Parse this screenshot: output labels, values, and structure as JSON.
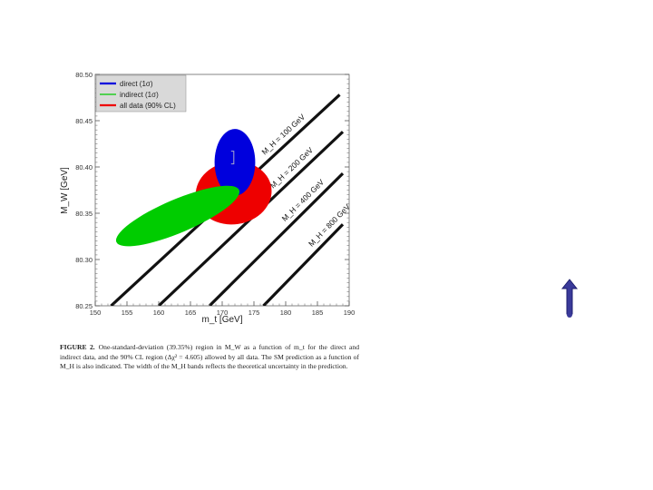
{
  "chart_data": {
    "type": "scatter",
    "xlabel": "m_t [GeV]",
    "ylabel": "M_W [GeV]",
    "xlim": [
      150,
      190
    ],
    "ylim": [
      80.25,
      80.5
    ],
    "x_ticks": [
      "150",
      "155",
      "160",
      "165",
      "170",
      "175",
      "180",
      "185",
      "190"
    ],
    "y_ticks": [
      "80.25",
      "80.30",
      "80.35",
      "80.40",
      "80.45",
      "80.50"
    ],
    "legend": [
      {
        "name": "direct (1σ)",
        "color": "#0000dd"
      },
      {
        "name": "indirect (1σ)",
        "color": "#00cc00"
      },
      {
        "name": "all data (90% CL)",
        "color": "#ee0000"
      }
    ],
    "legend_position": "top-left",
    "regions": [
      {
        "name": "all data (90% CL)",
        "color": "#ee0000",
        "cx": 171.8,
        "cy": 80.372,
        "rx": 6.0,
        "ry": 0.034,
        "rotation": -8
      },
      {
        "name": "direct (1σ)",
        "color": "#0000dd",
        "cx": 172.0,
        "cy": 80.405,
        "rx": 3.2,
        "ry": 0.036,
        "rotation": 0
      },
      {
        "name": "indirect (1σ)",
        "color": "#00cc00",
        "cx": 163.0,
        "cy": 80.347,
        "rx": 10.5,
        "ry": 0.018,
        "rotation": -23
      }
    ],
    "bands": [
      {
        "label": "M_H = 100 GeV",
        "x1": 152.5,
        "y1": 80.25,
        "x2": 188.5,
        "y2": 80.478
      },
      {
        "label": "M_H = 200 GeV",
        "x1": 160.0,
        "y1": 80.25,
        "x2": 189.0,
        "y2": 80.438
      },
      {
        "label": "M_H = 400 GeV",
        "x1": 168.0,
        "y1": 80.25,
        "x2": 189.0,
        "y2": 80.393
      },
      {
        "label": "M_H = 800 GeV",
        "x1": 176.5,
        "y1": 80.25,
        "x2": 189.0,
        "y2": 80.338
      }
    ]
  },
  "caption": {
    "label": "FIGURE 2.",
    "text": "One-standard-deviation (39.35%) region in M_W as a function of m_t for the direct and indirect data, and the 90% CL region (Δχ² = 4.605) allowed by all data. The SM prediction as a function of M_H is also indicated. The width of the M_H bands reflects the theoretical uncertainty in the prediction."
  }
}
